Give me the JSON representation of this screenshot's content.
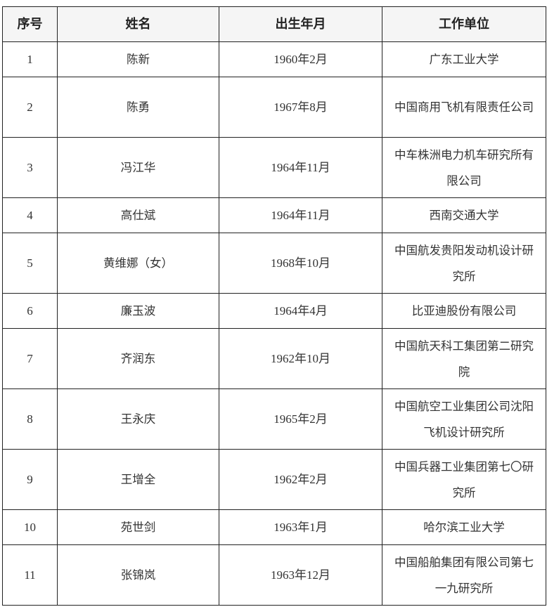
{
  "headers": [
    "序号",
    "姓名",
    "出生年月",
    "工作单位"
  ],
  "rows": [
    {
      "no": "1",
      "name": "陈新",
      "birth": "1960年2月",
      "unit": "广东工业大学"
    },
    {
      "no": "2",
      "name": "陈勇",
      "birth": "1967年8月",
      "unit": "中国商用飞机有限责任公司"
    },
    {
      "no": "3",
      "name": "冯江华",
      "birth": "1964年11月",
      "unit": "中车株洲电力机车研究所有限公司"
    },
    {
      "no": "4",
      "name": "高仕斌",
      "birth": "1964年11月",
      "unit": "西南交通大学"
    },
    {
      "no": "5",
      "name": "黄维娜（女）",
      "birth": "1968年10月",
      "unit": "中国航发贵阳发动机设计研究所"
    },
    {
      "no": "6",
      "name": "廉玉波",
      "birth": "1964年4月",
      "unit": "比亚迪股份有限公司"
    },
    {
      "no": "7",
      "name": "齐润东",
      "birth": "1962年10月",
      "unit": "中国航天科工集团第二研究院"
    },
    {
      "no": "8",
      "name": "王永庆",
      "birth": "1965年2月",
      "unit": "中国航空工业集团公司沈阳飞机设计研究所"
    },
    {
      "no": "9",
      "name": "王增全",
      "birth": "1962年2月",
      "unit": "中国兵器工业集团第七〇研究所"
    },
    {
      "no": "10",
      "name": "苑世剑",
      "birth": "1963年1月",
      "unit": "哈尔滨工业大学"
    },
    {
      "no": "11",
      "name": "张锦岚",
      "birth": "1963年12月",
      "unit": "中国船舶集团有限公司第七一九研究所"
    }
  ]
}
